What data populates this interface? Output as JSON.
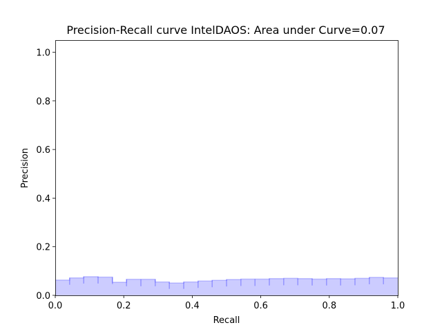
{
  "chart_data": {
    "type": "area",
    "title": "Precision-Recall curve IntelDAOS: Area under Curve=0.07",
    "xlabel": "Recall",
    "ylabel": "Precision",
    "xlim": [
      0.0,
      1.0
    ],
    "ylim": [
      0.0,
      1.05
    ],
    "xticks": [
      "0.0",
      "0.2",
      "0.4",
      "0.6",
      "0.8",
      "1.0"
    ],
    "yticks": [
      "0.0",
      "0.2",
      "0.4",
      "0.6",
      "0.8",
      "1.0"
    ],
    "grid": false,
    "legend": "none",
    "series": [
      {
        "step": "post",
        "color": "#0000ff",
        "recall": [
          0.0,
          0.042,
          0.083,
          0.125,
          0.167,
          0.208,
          0.25,
          0.292,
          0.333,
          0.375,
          0.417,
          0.458,
          0.5,
          0.542,
          0.583,
          0.625,
          0.667,
          0.708,
          0.75,
          0.792,
          0.833,
          0.875,
          0.917,
          0.958
        ],
        "precision": [
          0.063,
          0.072,
          0.077,
          0.075,
          0.054,
          0.066,
          0.066,
          0.055,
          0.051,
          0.055,
          0.059,
          0.062,
          0.065,
          0.067,
          0.067,
          0.069,
          0.07,
          0.069,
          0.067,
          0.069,
          0.068,
          0.07,
          0.074,
          0.072
        ]
      }
    ]
  }
}
